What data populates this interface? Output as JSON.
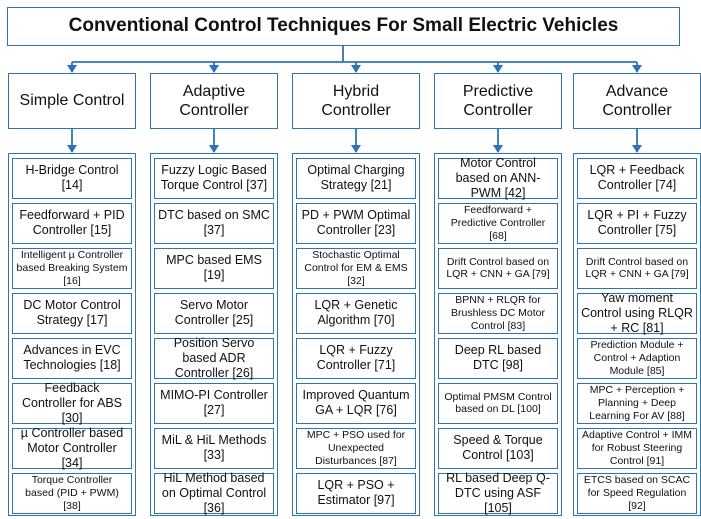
{
  "title": "Conventional Control Techniques For Small Electric Vehicles",
  "columns": [
    {
      "header": "Simple Control",
      "items": [
        {
          "text": "H-Bridge Control [14]"
        },
        {
          "text": "Feedforward + PID Controller [15]"
        },
        {
          "text": "Intelligent µ Controller based Breaking System [16]",
          "small": true
        },
        {
          "text": "DC Motor Control Strategy [17]"
        },
        {
          "text": "Advances in EVC Technologies [18]"
        },
        {
          "text": "Feedback Controller for ABS [30]"
        },
        {
          "text": "µ Controller based Motor Controller [34]"
        },
        {
          "text": "Torque Controller based (PID + PWM) [38]",
          "small": true
        }
      ]
    },
    {
      "header": "Adaptive Controller",
      "items": [
        {
          "text": "Fuzzy Logic Based Torque Control [37]"
        },
        {
          "text": "DTC based on SMC [37]"
        },
        {
          "text": "MPC based EMS [19]"
        },
        {
          "text": "Servo Motor Controller [25]"
        },
        {
          "text": "Position Servo based ADR Controller [26]"
        },
        {
          "text": "MIMO-PI Controller [27]"
        },
        {
          "text": "MiL & HiL Methods [33]"
        },
        {
          "text": "HiL Method based on Optimal Control [36]"
        }
      ]
    },
    {
      "header": "Hybrid Controller",
      "items": [
        {
          "text": "Optimal Charging Strategy [21]"
        },
        {
          "text": "PD + PWM Optimal Controller [23]"
        },
        {
          "text": "Stochastic Optimal Control for EM & EMS [32]",
          "small": true
        },
        {
          "text": "LQR + Genetic Algorithm [70]"
        },
        {
          "text": "LQR + Fuzzy Controller [71]"
        },
        {
          "text": "Improved Quantum GA + LQR [76]"
        },
        {
          "text": "MPC + PSO used for Unexpected Disturbances [87]",
          "small": true
        },
        {
          "text": "LQR + PSO + Estimator [97]"
        }
      ]
    },
    {
      "header": "Predictive Controller",
      "items": [
        {
          "text": "Motor Control based on ANN-PWM [42]"
        },
        {
          "text": "Feedforward + Predictive Controller [68]",
          "small": true
        },
        {
          "text": "Drift Control based on LQR + CNN + GA [79]",
          "small": true
        },
        {
          "text": "BPNN + RLQR for Brushless DC Motor Control [83]",
          "small": true
        },
        {
          "text": "Deep RL based DTC [98]"
        },
        {
          "text": "Optimal PMSM Control based on DL [100]",
          "small": true
        },
        {
          "text": "Speed & Torque Control [103]"
        },
        {
          "text": "RL based Deep Q-DTC using ASF [105]"
        }
      ]
    },
    {
      "header": "Advance Controller",
      "items": [
        {
          "text": "LQR + Feedback Controller [74]"
        },
        {
          "text": "LQR + PI + Fuzzy Controller [75]"
        },
        {
          "text": "Drift Control based on LQR + CNN + GA [79]",
          "small": true
        },
        {
          "text": "Yaw moment Control using RLQR + RC [81]"
        },
        {
          "text": "Prediction Module + Control + Adaption Module [85]",
          "small": true
        },
        {
          "text": "MPC + Perception + Planning + Deep Learning For AV [88]",
          "small": true
        },
        {
          "text": "Adaptive Control + IMM for Robust Steering Control [91]",
          "small": true
        },
        {
          "text": "ETCS based on SCAC for Speed Regulation [92]",
          "small": true
        }
      ]
    }
  ],
  "colors": {
    "border": "#2e74b5",
    "arrow": "#2e74b5"
  }
}
